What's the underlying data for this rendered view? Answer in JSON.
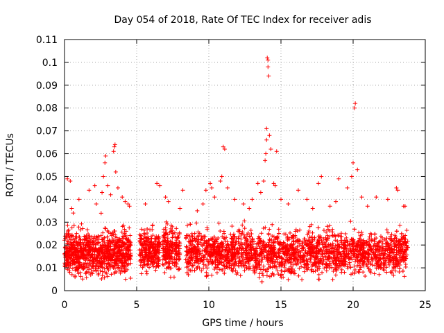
{
  "chart_data": {
    "type": "scatter",
    "title": "Day 054 of 2018, Rate Of TEC Index for receiver adis",
    "xlabel": "GPS time / hours",
    "ylabel": "ROTI / TECUs",
    "xlim": [
      0,
      25
    ],
    "ylim": [
      0,
      0.11
    ],
    "xticks": [
      0,
      5,
      10,
      15,
      20,
      25
    ],
    "xtick_labels": [
      "0",
      "5",
      "10",
      "15",
      "20",
      "25"
    ],
    "yticks": [
      0,
      0.01,
      0.02,
      0.03,
      0.04,
      0.05,
      0.06,
      0.07,
      0.08,
      0.09,
      0.1,
      0.11
    ],
    "ytick_labels": [
      "0",
      "0.01",
      "0.02",
      "0.03",
      "0.04",
      "0.05",
      "0.06",
      "0.07",
      "0.08",
      "0.09",
      "0.1",
      "0.11"
    ],
    "grid": true,
    "marker": "+",
    "color": "#ff0000",
    "series": [
      {
        "name": "ROTI",
        "clusters": [
          {
            "x_range": [
              0.0,
              4.6
            ],
            "y_range": [
              0.003,
              0.03
            ],
            "count": 900
          },
          {
            "x_range": [
              5.2,
              6.6
            ],
            "y_range": [
              0.004,
              0.03
            ],
            "count": 260
          },
          {
            "x_range": [
              6.8,
              8.0
            ],
            "y_range": [
              0.004,
              0.032
            ],
            "count": 220
          },
          {
            "x_range": [
              8.4,
              23.8
            ],
            "y_range": [
              0.003,
              0.03
            ],
            "count": 2300
          }
        ],
        "points": [
          [
            0.2,
            0.049
          ],
          [
            0.4,
            0.048
          ],
          [
            0.5,
            0.036
          ],
          [
            0.6,
            0.034
          ],
          [
            1.0,
            0.04
          ],
          [
            1.7,
            0.044
          ],
          [
            2.1,
            0.046
          ],
          [
            2.2,
            0.038
          ],
          [
            2.6,
            0.043
          ],
          [
            2.7,
            0.05
          ],
          [
            2.8,
            0.056
          ],
          [
            2.85,
            0.059
          ],
          [
            3.0,
            0.046
          ],
          [
            3.2,
            0.042
          ],
          [
            3.4,
            0.061
          ],
          [
            3.45,
            0.063
          ],
          [
            3.5,
            0.064
          ],
          [
            3.55,
            0.052
          ],
          [
            3.7,
            0.045
          ],
          [
            4.0,
            0.041
          ],
          [
            4.2,
            0.039
          ],
          [
            4.4,
            0.038
          ],
          [
            4.5,
            0.037
          ],
          [
            5.6,
            0.038
          ],
          [
            6.4,
            0.047
          ],
          [
            6.6,
            0.046
          ],
          [
            7.0,
            0.041
          ],
          [
            7.2,
            0.039
          ],
          [
            8.0,
            0.036
          ],
          [
            8.2,
            0.044
          ],
          [
            9.2,
            0.035
          ],
          [
            9.6,
            0.038
          ],
          [
            9.8,
            0.044
          ],
          [
            10.1,
            0.047
          ],
          [
            10.2,
            0.045
          ],
          [
            10.4,
            0.041
          ],
          [
            10.8,
            0.048
          ],
          [
            10.9,
            0.05
          ],
          [
            11.0,
            0.063
          ],
          [
            11.1,
            0.062
          ],
          [
            11.3,
            0.045
          ],
          [
            11.8,
            0.04
          ],
          [
            12.4,
            0.038
          ],
          [
            12.8,
            0.036
          ],
          [
            13.0,
            0.04
          ],
          [
            13.4,
            0.047
          ],
          [
            13.6,
            0.043
          ],
          [
            13.8,
            0.048
          ],
          [
            13.9,
            0.057
          ],
          [
            13.95,
            0.06
          ],
          [
            14.0,
            0.066
          ],
          [
            14.0,
            0.071
          ],
          [
            14.05,
            0.102
          ],
          [
            14.1,
            0.101
          ],
          [
            14.1,
            0.098
          ],
          [
            14.15,
            0.094
          ],
          [
            14.2,
            0.068
          ],
          [
            14.3,
            0.062
          ],
          [
            14.5,
            0.047
          ],
          [
            14.6,
            0.046
          ],
          [
            14.7,
            0.061
          ],
          [
            15.0,
            0.04
          ],
          [
            15.5,
            0.038
          ],
          [
            16.2,
            0.044
          ],
          [
            16.8,
            0.04
          ],
          [
            17.2,
            0.036
          ],
          [
            17.6,
            0.047
          ],
          [
            17.8,
            0.05
          ],
          [
            18.4,
            0.037
          ],
          [
            18.8,
            0.039
          ],
          [
            19.0,
            0.049
          ],
          [
            19.6,
            0.045
          ],
          [
            19.9,
            0.05
          ],
          [
            20.0,
            0.056
          ],
          [
            20.1,
            0.08
          ],
          [
            20.15,
            0.082
          ],
          [
            20.3,
            0.053
          ],
          [
            20.6,
            0.041
          ],
          [
            21.0,
            0.037
          ],
          [
            21.6,
            0.041
          ],
          [
            22.4,
            0.04
          ],
          [
            23.0,
            0.045
          ],
          [
            23.1,
            0.044
          ],
          [
            23.5,
            0.037
          ],
          [
            23.6,
            0.037
          ]
        ]
      }
    ]
  }
}
